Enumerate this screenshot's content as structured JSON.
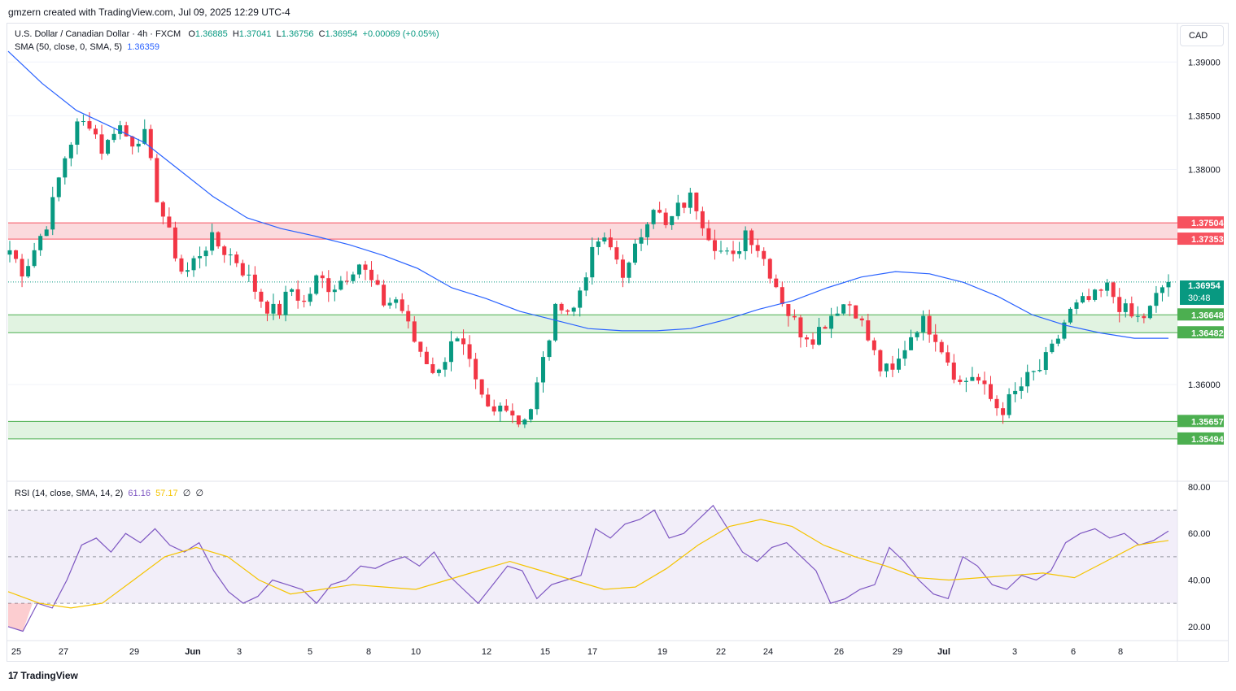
{
  "header": {
    "attribution": "gmzern created with TradingView.com, Jul 09, 2025 12:29 UTC-4"
  },
  "legend": {
    "symbol": "U.S. Dollar / Canadian Dollar · 4h · FXCM",
    "open_label": "O",
    "open": "1.36885",
    "high_label": "H",
    "high": "1.37041",
    "low_label": "L",
    "low": "1.36756",
    "close_label": "C",
    "close": "1.36954",
    "change": "+0.00069 (+0.05%)",
    "sma_label": "SMA (50, close, 0, SMA, 5)",
    "sma_value": "1.36359",
    "rsi_label": "RSI (14, close, SMA, 14, 2)",
    "rsi_value": "61.16",
    "rsi_sma_value": "57.17",
    "rsi_extra1": "∅",
    "rsi_extra2": "∅"
  },
  "currency_button": "CAD",
  "footer": {
    "logo_mark": "17",
    "brand": "TradingView"
  },
  "colors": {
    "bull": "#089981",
    "bear": "#f23645",
    "sma": "#2962ff",
    "rsi": "#7e57c2",
    "rsi_sma": "#f5c400",
    "resistance_zone": "#fbdadd",
    "support_zone": "#e1f3e1"
  },
  "chart_data": {
    "type": "candlestick",
    "timeframe": "4h",
    "y_ticks": [
      "1.39000",
      "1.38500",
      "1.38000",
      "1.36000"
    ],
    "ylim": [
      1.351,
      1.3935
    ],
    "x_tick_labels": [
      "25",
      "27",
      "29",
      "Jun",
      "3",
      "5",
      "8",
      "10",
      "12",
      "15",
      "17",
      "19",
      "22",
      "24",
      "26",
      "29",
      "Jul",
      "3",
      "6",
      "8"
    ],
    "zones": [
      {
        "type": "resistance",
        "top": 1.37504,
        "bottom": 1.37353,
        "top_label": "1.37504",
        "bottom_label": "1.37353"
      },
      {
        "type": "support",
        "top": 1.36648,
        "bottom": 1.36482,
        "top_label": "1.36648",
        "bottom_label": "1.36482"
      },
      {
        "type": "support",
        "top": 1.35657,
        "bottom": 1.35494,
        "top_label": "1.35657",
        "bottom_label": "1.35494"
      }
    ],
    "last_price": {
      "value": 1.36954,
      "label": "1.36954",
      "countdown": "30:48"
    },
    "close_path": [
      1.3725,
      1.3705,
      1.373,
      1.3758,
      1.3808,
      1.384,
      1.3845,
      1.3815,
      1.3845,
      1.3825,
      1.3835,
      1.3775,
      1.3735,
      1.37,
      1.372,
      1.3735,
      1.3725,
      1.3715,
      1.3695,
      1.3675,
      1.3665,
      1.369,
      1.3675,
      1.37,
      1.369,
      1.37,
      1.3715,
      1.3695,
      1.3675,
      1.368,
      1.3645,
      1.3625,
      1.3608,
      1.3645,
      1.363,
      1.359,
      1.357,
      1.3585,
      1.3565,
      1.358,
      1.363,
      1.368,
      1.3665,
      1.3705,
      1.3735,
      1.3725,
      1.37,
      1.3735,
      1.377,
      1.3745,
      1.3765,
      1.3775,
      1.3745,
      1.3725,
      1.3715,
      1.3745,
      1.3725,
      1.37,
      1.367,
      1.365,
      1.3645,
      1.366,
      1.3675,
      1.3675,
      1.3645,
      1.3615,
      1.361,
      1.364,
      1.366,
      1.365,
      1.3625,
      1.36,
      1.361,
      1.359,
      1.3575,
      1.359,
      1.3605,
      1.3615,
      1.3635,
      1.3665,
      1.3675,
      1.368,
      1.369,
      1.3672,
      1.366,
      1.3665,
      1.369,
      1.3695
    ],
    "sma": {
      "name": "SMA (50, close, 0, SMA, 5)",
      "values": [
        1.391,
        1.388,
        1.3855,
        1.384,
        1.3825,
        1.38,
        1.3775,
        1.3755,
        1.3745,
        1.3738,
        1.373,
        1.372,
        1.3708,
        1.369,
        1.368,
        1.3668,
        1.366,
        1.3652,
        1.365,
        1.365,
        1.3652,
        1.366,
        1.367,
        1.3678,
        1.369,
        1.37,
        1.3705,
        1.3703,
        1.3695,
        1.3682,
        1.3665,
        1.3655,
        1.3648,
        1.3643,
        1.3643
      ],
      "last": 1.36359
    },
    "rsi": {
      "name": "RSI (14, close, SMA, 14, 2)",
      "ylim": [
        14,
        81
      ],
      "y_ticks": [
        "80.00",
        "60.00",
        "40.00",
        "20.00"
      ],
      "levels": [
        70,
        50,
        30
      ],
      "values": [
        20,
        18,
        30,
        28,
        40,
        55,
        58,
        52,
        60,
        56,
        62,
        55,
        52,
        56,
        44,
        35,
        30,
        33,
        40,
        38,
        36,
        30,
        38,
        40,
        46,
        45,
        48,
        50,
        46,
        52,
        42,
        36,
        30,
        38,
        46,
        44,
        32,
        38,
        40,
        42,
        62,
        58,
        64,
        66,
        70,
        58,
        60,
        66,
        72,
        62,
        52,
        48,
        54,
        56,
        50,
        44,
        30,
        32,
        36,
        38,
        54,
        48,
        40,
        34,
        32,
        50,
        46,
        38,
        36,
        42,
        40,
        44,
        56,
        60,
        62,
        58,
        60,
        55,
        57,
        61
      ],
      "last": 61.16,
      "sma_values": [
        35,
        30,
        28,
        30,
        40,
        50,
        54,
        50,
        40,
        34,
        36,
        38,
        37,
        36,
        40,
        44,
        48,
        44,
        40,
        36,
        37,
        45,
        55,
        63,
        66,
        63,
        55,
        50,
        46,
        41,
        40,
        41,
        42,
        43,
        41,
        48,
        55,
        57
      ],
      "sma_last": 57.17
    }
  }
}
